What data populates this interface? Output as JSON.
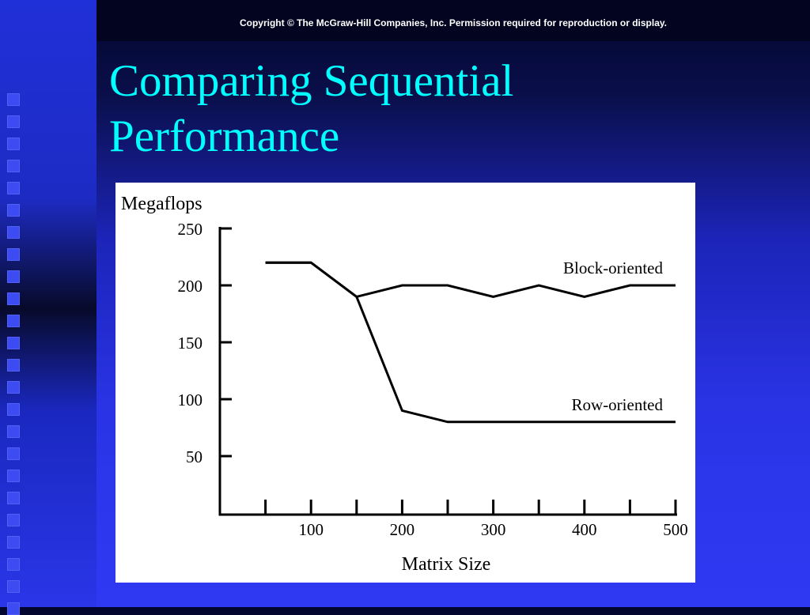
{
  "header": {
    "copyright": "Copyright © The McGraw-Hill Companies, Inc. Permission required for reproduction or display."
  },
  "slide": {
    "title_line1": "Comparing Sequential",
    "title_line2": "Performance"
  },
  "colors": {
    "title": "#00ffff",
    "background": "#2f39f2",
    "chart_background": "#ffffff",
    "line": "#000000"
  },
  "chart_data": {
    "type": "line",
    "title": "",
    "ylabel": "Megaflops",
    "xlabel": "Matrix Size",
    "xlim": [
      0,
      500
    ],
    "ylim": [
      0,
      250
    ],
    "x_ticks": [
      50,
      100,
      150,
      200,
      250,
      300,
      350,
      400,
      450,
      500
    ],
    "x_tick_labels": [
      "100",
      "200",
      "300",
      "400",
      "500"
    ],
    "x_tick_label_values": [
      100,
      200,
      300,
      400,
      500
    ],
    "y_ticks": [
      50,
      100,
      150,
      200,
      250
    ],
    "y_tick_labels": [
      "50",
      "100",
      "150",
      "200",
      "250"
    ],
    "grid": false,
    "legend": "inline labels",
    "series": [
      {
        "name": "Block-oriented",
        "x": [
          50,
          100,
          150,
          200,
          250,
          300,
          350,
          400,
          450,
          500
        ],
        "values": [
          220,
          220,
          190,
          200,
          200,
          190,
          200,
          190,
          200,
          200
        ]
      },
      {
        "name": "Row-oriented",
        "x": [
          50,
          100,
          150,
          200,
          250,
          300,
          350,
          400,
          450,
          500
        ],
        "values": [
          220,
          220,
          190,
          90,
          80,
          80,
          80,
          80,
          80,
          80
        ]
      }
    ]
  }
}
